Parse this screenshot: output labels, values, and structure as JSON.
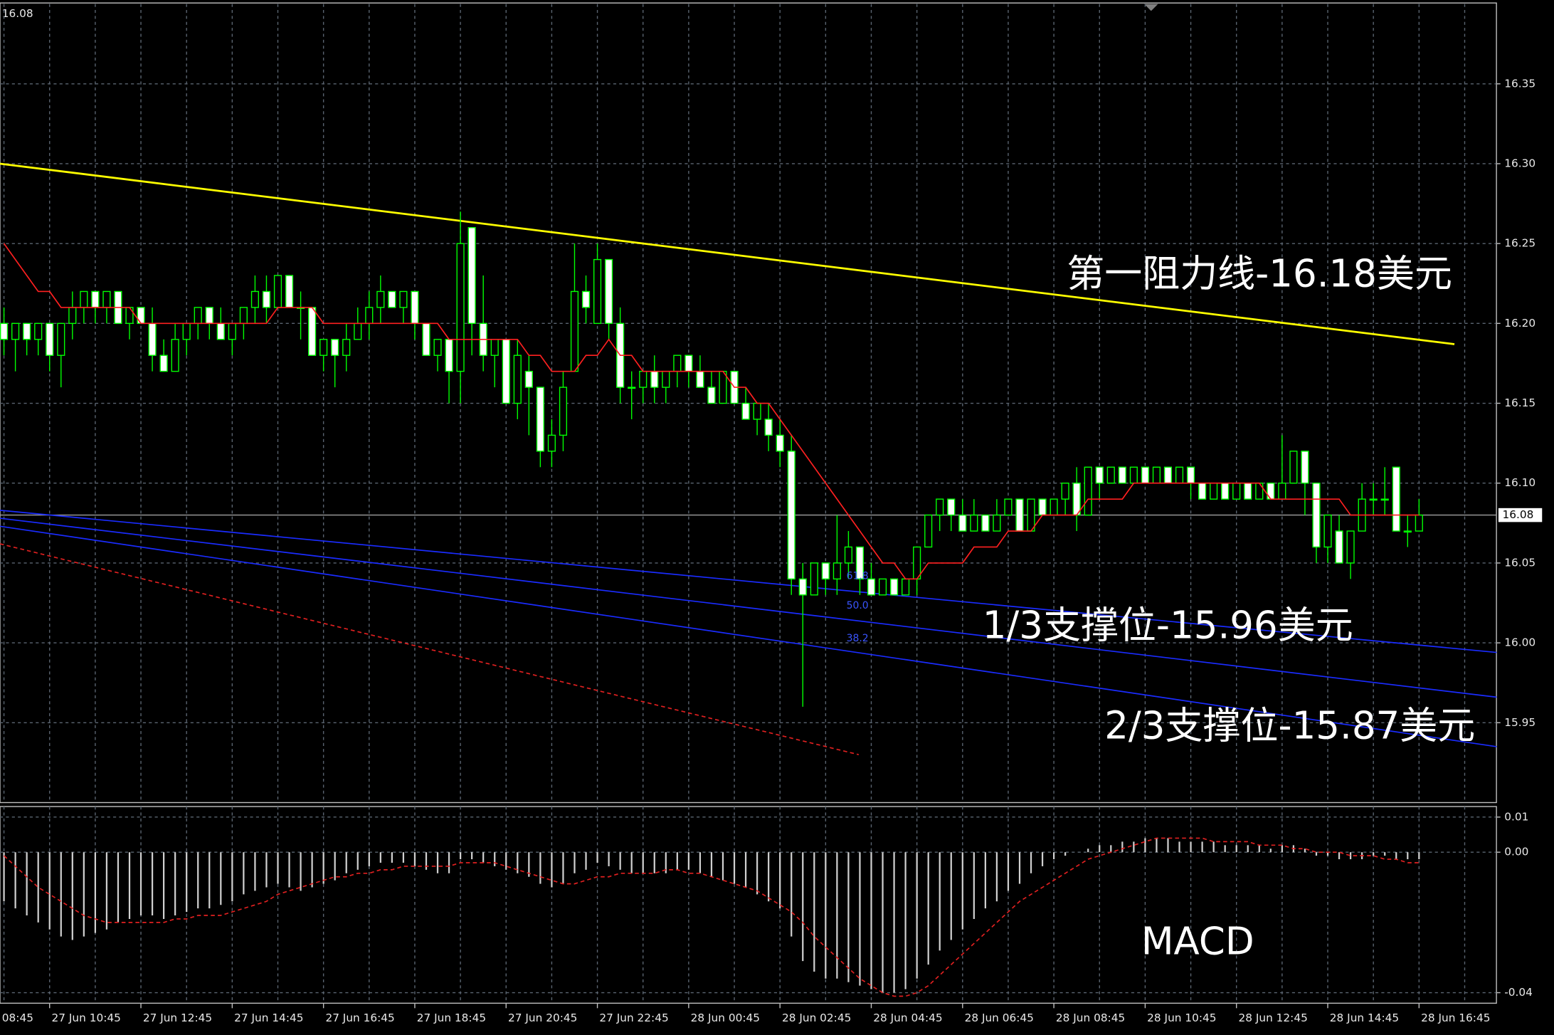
{
  "chart_data": {
    "type": "candlestick",
    "corner_label": "16.08",
    "categories": [
      "08:45",
      null,
      null,
      null,
      null,
      null,
      null,
      null,
      "27 Jun 10:45",
      null,
      null,
      null,
      null,
      null,
      null,
      null,
      "27 Jun 12:45",
      null,
      null,
      null,
      null,
      null,
      null,
      null,
      "27 Jun 14:45",
      null,
      null,
      null,
      null,
      null,
      null,
      null,
      "27 Jun 16:45",
      null,
      null,
      null,
      null,
      null,
      null,
      null,
      "27 Jun 18:45",
      null,
      null,
      null,
      null,
      null,
      null,
      null,
      "27 Jun 20:45",
      null,
      null,
      null,
      null,
      null,
      null,
      null,
      "27 Jun 22:45",
      null,
      null,
      null,
      null,
      null,
      null,
      null,
      "28 Jun 00:45",
      null,
      null,
      null,
      null,
      null,
      null,
      null,
      "28 Jun 02:45",
      null,
      null,
      null,
      null,
      null,
      null,
      null,
      "28 Jun 04:45",
      null,
      null,
      null,
      null,
      null,
      null,
      null,
      "28 Jun 06:45",
      null,
      null,
      null,
      null,
      null,
      null,
      null,
      "28 Jun 08:45",
      null,
      null,
      null,
      null,
      null,
      null,
      null,
      "28 Jun 10:45",
      null,
      null,
      null,
      null,
      null,
      null,
      null,
      "28 Jun 12:45",
      null,
      null,
      null,
      null,
      null,
      null,
      null,
      "28 Jun 14:45",
      null,
      null,
      null,
      null,
      null,
      null,
      null,
      "28 Jun 16:45",
      null,
      null,
      null,
      null,
      null,
      null
    ],
    "open": [
      null,
      null,
      null,
      null,
      16.2,
      16.19,
      16.2,
      16.19,
      16.2,
      16.18,
      16.2,
      16.21,
      16.22,
      16.21,
      16.22,
      16.2,
      16.21,
      16.2,
      16.18,
      16.17,
      16.19,
      16.2,
      16.21,
      16.2,
      16.19,
      16.2,
      16.21,
      16.22,
      16.21,
      16.23,
      16.21,
      16.21,
      16.18,
      16.19,
      16.18,
      16.19,
      16.2,
      16.21,
      16.22,
      16.21,
      16.22,
      16.2,
      16.18,
      16.19,
      16.17,
      16.26,
      16.2,
      16.18,
      16.19,
      16.15,
      16.17,
      16.16,
      16.12,
      16.13,
      16.17,
      16.22,
      16.2,
      16.24,
      16.2,
      16.16,
      16.16,
      16.17,
      16.16,
      16.17,
      16.18,
      16.17,
      16.16,
      16.15,
      16.17,
      16.15,
      16.14,
      16.14,
      16.13,
      16.12,
      16.04,
      16.03,
      16.05,
      16.04,
      16.05,
      16.06,
      16.04,
      16.03,
      16.04,
      16.03,
      16.04,
      16.06,
      16.08,
      16.09,
      16.08,
      16.07,
      16.08,
      16.07,
      16.08,
      16.09,
      16.07,
      16.09,
      16.08,
      16.09,
      16.1,
      16.08,
      16.11,
      16.1,
      16.11,
      16.1,
      16.11,
      16.1,
      16.11,
      16.1,
      16.11,
      16.1,
      16.09,
      16.1,
      16.09,
      16.1,
      16.09,
      16.1,
      16.09,
      16.1,
      16.12,
      16.1,
      16.06,
      16.07,
      16.05,
      16.07,
      16.09,
      16.09,
      16.11,
      16.07,
      16.07,
      null,
      null,
      null,
      null,
      null,
      null
    ],
    "high": [
      null,
      null,
      null,
      null,
      16.21,
      16.2,
      16.2,
      16.2,
      16.2,
      16.2,
      16.22,
      16.22,
      16.22,
      16.22,
      16.22,
      16.21,
      16.21,
      16.21,
      16.19,
      16.2,
      16.2,
      16.21,
      16.21,
      16.21,
      16.2,
      16.21,
      16.23,
      16.23,
      16.23,
      16.23,
      16.22,
      16.21,
      16.19,
      16.19,
      16.2,
      16.21,
      16.22,
      16.23,
      16.22,
      16.22,
      16.22,
      16.2,
      16.19,
      16.19,
      16.27,
      16.26,
      16.23,
      16.19,
      16.19,
      16.19,
      16.18,
      16.16,
      16.14,
      16.17,
      16.25,
      16.23,
      16.25,
      16.24,
      16.21,
      16.17,
      16.17,
      16.18,
      16.17,
      16.18,
      16.18,
      16.18,
      16.17,
      16.17,
      16.17,
      16.16,
      16.15,
      16.15,
      16.14,
      16.13,
      16.05,
      16.05,
      16.05,
      16.08,
      16.07,
      16.06,
      16.05,
      16.04,
      16.04,
      16.04,
      16.06,
      16.08,
      16.09,
      16.09,
      16.09,
      16.09,
      16.08,
      16.09,
      16.09,
      16.09,
      16.09,
      16.09,
      16.09,
      16.1,
      16.11,
      16.11,
      16.11,
      16.11,
      16.11,
      16.11,
      16.11,
      16.11,
      16.11,
      16.11,
      16.11,
      16.1,
      16.1,
      16.1,
      16.1,
      16.1,
      16.1,
      16.1,
      16.13,
      16.12,
      16.12,
      16.1,
      16.08,
      16.08,
      16.07,
      16.1,
      16.1,
      16.11,
      16.11,
      16.08,
      16.09,
      null,
      null,
      null,
      null,
      null,
      null
    ],
    "low": [
      null,
      null,
      null,
      null,
      16.18,
      16.17,
      16.18,
      16.18,
      16.17,
      16.16,
      16.19,
      16.2,
      16.2,
      16.2,
      16.2,
      16.19,
      16.2,
      16.17,
      16.17,
      16.17,
      16.18,
      16.19,
      16.19,
      16.19,
      16.18,
      16.19,
      16.2,
      16.2,
      16.21,
      16.21,
      16.19,
      16.18,
      16.17,
      16.16,
      16.17,
      16.19,
      16.19,
      16.2,
      16.21,
      16.2,
      16.19,
      16.18,
      16.17,
      16.15,
      16.15,
      16.18,
      16.17,
      16.16,
      16.15,
      16.14,
      16.13,
      16.11,
      16.11,
      16.12,
      16.17,
      16.2,
      16.2,
      16.19,
      16.15,
      16.14,
      16.15,
      16.15,
      16.15,
      16.16,
      16.16,
      16.16,
      16.15,
      16.15,
      16.15,
      16.14,
      16.13,
      16.12,
      16.11,
      16.03,
      15.96,
      16.03,
      16.03,
      16.03,
      16.04,
      16.03,
      16.03,
      16.03,
      16.03,
      16.03,
      16.03,
      16.06,
      16.07,
      16.07,
      16.07,
      16.07,
      16.07,
      16.07,
      16.08,
      16.07,
      16.07,
      16.08,
      16.08,
      16.08,
      16.07,
      16.08,
      16.09,
      16.1,
      16.1,
      16.1,
      16.1,
      16.1,
      16.1,
      16.1,
      16.09,
      16.09,
      16.09,
      16.09,
      16.09,
      16.09,
      16.09,
      16.09,
      16.09,
      16.1,
      16.08,
      16.05,
      16.05,
      16.05,
      16.04,
      16.07,
      16.08,
      16.08,
      16.07,
      16.06,
      16.07,
      null,
      null,
      null,
      null,
      null,
      null
    ],
    "close": [
      null,
      null,
      null,
      null,
      16.19,
      16.2,
      16.19,
      16.2,
      16.18,
      16.2,
      16.21,
      16.22,
      16.21,
      16.22,
      16.2,
      16.21,
      16.2,
      16.18,
      16.17,
      16.19,
      16.2,
      16.21,
      16.2,
      16.19,
      16.2,
      16.21,
      16.22,
      16.21,
      16.23,
      16.21,
      16.21,
      16.18,
      16.19,
      16.18,
      16.19,
      16.2,
      16.21,
      16.22,
      16.21,
      16.22,
      16.2,
      16.18,
      16.19,
      16.17,
      16.25,
      16.2,
      16.18,
      16.19,
      16.15,
      16.18,
      16.16,
      16.12,
      16.13,
      16.16,
      16.22,
      16.21,
      16.24,
      16.2,
      16.16,
      16.16,
      16.17,
      16.16,
      16.17,
      16.18,
      16.17,
      16.16,
      16.15,
      16.17,
      16.15,
      16.14,
      16.15,
      16.13,
      16.12,
      16.04,
      16.03,
      16.05,
      16.04,
      16.05,
      16.06,
      16.04,
      16.03,
      16.04,
      16.03,
      16.04,
      16.06,
      16.08,
      16.09,
      16.08,
      16.07,
      16.08,
      16.07,
      16.08,
      16.09,
      16.07,
      16.09,
      16.08,
      16.09,
      16.1,
      16.08,
      16.11,
      16.1,
      16.11,
      16.1,
      16.11,
      16.1,
      16.11,
      16.1,
      16.11,
      16.1,
      16.09,
      16.1,
      16.09,
      16.1,
      16.09,
      16.1,
      16.09,
      16.1,
      16.12,
      16.1,
      16.06,
      16.08,
      16.05,
      16.07,
      16.09,
      16.09,
      16.09,
      16.07,
      16.07,
      16.08,
      null,
      null,
      null,
      null,
      null,
      null
    ],
    "candle_colors": {
      "wick": "#00ff00",
      "up": "#000000",
      "down": "#ffffff"
    },
    "ma": {
      "color": "#ff2020",
      "values": [
        null,
        null,
        null,
        null,
        16.25,
        16.24,
        16.23,
        16.22,
        16.22,
        16.21,
        16.21,
        16.21,
        16.21,
        16.21,
        16.21,
        16.21,
        16.2,
        16.2,
        16.2,
        16.2,
        16.2,
        16.2,
        16.2,
        16.2,
        16.2,
        16.2,
        16.2,
        16.2,
        16.21,
        16.21,
        16.21,
        16.21,
        16.2,
        16.2,
        16.2,
        16.2,
        16.2,
        16.2,
        16.2,
        16.2,
        16.2,
        16.2,
        16.2,
        16.19,
        16.19,
        16.19,
        16.19,
        16.19,
        16.19,
        16.19,
        16.18,
        16.18,
        16.17,
        16.17,
        16.17,
        16.18,
        16.18,
        16.19,
        16.18,
        16.18,
        16.17,
        16.17,
        16.17,
        16.17,
        16.17,
        16.17,
        16.17,
        16.17,
        16.16,
        16.16,
        16.15,
        16.15,
        16.14,
        16.13,
        16.12,
        16.11,
        16.1,
        16.09,
        16.08,
        16.07,
        16.06,
        16.05,
        16.05,
        16.04,
        16.04,
        16.05,
        16.05,
        16.05,
        16.05,
        16.06,
        16.06,
        16.06,
        16.07,
        16.07,
        16.07,
        16.08,
        16.08,
        16.08,
        16.08,
        16.09,
        16.09,
        16.09,
        16.09,
        16.1,
        16.1,
        16.1,
        16.1,
        16.1,
        16.1,
        16.1,
        16.1,
        16.1,
        16.1,
        16.1,
        16.1,
        16.09,
        16.09,
        16.09,
        16.09,
        16.09,
        16.09,
        16.09,
        16.08,
        16.08,
        16.08,
        16.08,
        16.08,
        16.08,
        16.08,
        null,
        null,
        null,
        null,
        null,
        null
      ]
    },
    "ylim": [
      15.9,
      16.4
    ],
    "yticks": [
      {
        "value": 15.95,
        "label": "15.95"
      },
      {
        "value": 16.0,
        "label": "16.00"
      },
      16.05,
      {
        "value": 16.1,
        "label": "16.10"
      },
      16.15,
      {
        "value": 16.2,
        "label": "16.20"
      },
      16.25,
      {
        "value": 16.3,
        "label": "16.30"
      },
      16.35
    ],
    "grid": true,
    "last_price": 16.08,
    "trendlines": [
      {
        "color": "#ffff00",
        "x": [
          3.65,
          131.1
        ],
        "y": [
          16.3,
          16.187
        ]
      },
      {
        "color": "#1a2cff",
        "x": [
          3.65,
          134.8
        ],
        "y": [
          16.083,
          15.994
        ]
      },
      {
        "color": "#1a2cff",
        "x": [
          3.65,
          134.8
        ],
        "y": [
          16.078,
          15.966
        ]
      },
      {
        "color": "#1a2cff",
        "x": [
          3.65,
          134.8
        ],
        "y": [
          16.073,
          15.935
        ]
      },
      {
        "color": "#e02020",
        "dashed": true,
        "x": [
          3.65,
          78.9
        ],
        "y": [
          16.062,
          15.93
        ]
      }
    ],
    "fib_labels": [
      "61.8",
      "50.0",
      "38.2"
    ],
    "annotations": [
      "第一阻力线-16.18美元",
      "1/3支撑位-15.96美元",
      "2/3支撑位-15.87美元"
    ],
    "macd": {
      "type": "bar",
      "title": "MACD",
      "color": "#d0d0d0",
      "signal_color": "#e02020",
      "values": [
        null,
        null,
        null,
        null,
        -0.014,
        -0.016,
        -0.018,
        -0.02,
        -0.022,
        -0.024,
        -0.025,
        -0.024,
        -0.023,
        -0.022,
        -0.02,
        -0.019,
        -0.018,
        -0.018,
        -0.019,
        -0.018,
        -0.017,
        -0.016,
        -0.016,
        -0.015,
        -0.014,
        -0.012,
        -0.011,
        -0.01,
        -0.009,
        -0.01,
        -0.011,
        -0.01,
        -0.009,
        -0.008,
        -0.006,
        -0.005,
        -0.004,
        -0.003,
        -0.003,
        -0.003,
        -0.004,
        -0.005,
        -0.006,
        -0.006,
        -0.002,
        -0.002,
        -0.003,
        -0.004,
        -0.005,
        -0.006,
        -0.007,
        -0.009,
        -0.01,
        -0.009,
        -0.006,
        -0.005,
        -0.003,
        -0.004,
        -0.005,
        -0.006,
        -0.006,
        -0.006,
        -0.006,
        -0.005,
        -0.005,
        -0.006,
        -0.007,
        -0.008,
        -0.009,
        -0.01,
        -0.012,
        -0.014,
        -0.016,
        -0.024,
        -0.031,
        -0.034,
        -0.036,
        -0.036,
        -0.037,
        -0.038,
        -0.039,
        -0.04,
        -0.04,
        -0.039,
        -0.036,
        -0.032,
        -0.028,
        -0.025,
        -0.022,
        -0.019,
        -0.016,
        -0.014,
        -0.011,
        -0.009,
        -0.006,
        -0.004,
        -0.002,
        -0.001,
        0.0,
        0.001,
        0.002,
        0.002,
        0.003,
        0.003,
        0.004,
        0.004,
        0.004,
        0.003,
        0.003,
        0.003,
        0.003,
        0.002,
        0.002,
        0.002,
        0.002,
        0.001,
        0.002,
        0.002,
        0.001,
        -0.001,
        -0.001,
        -0.002,
        -0.002,
        -0.002,
        -0.001,
        -0.001,
        -0.002,
        -0.002,
        -0.002,
        null,
        null,
        null,
        null,
        null,
        null
      ],
      "signal": [
        null,
        null,
        null,
        null,
        -0.001,
        -0.004,
        -0.007,
        -0.01,
        -0.012,
        -0.014,
        -0.016,
        -0.018,
        -0.019,
        -0.02,
        -0.02,
        -0.02,
        -0.02,
        -0.02,
        -0.02,
        -0.019,
        -0.019,
        -0.018,
        -0.018,
        -0.018,
        -0.017,
        -0.016,
        -0.015,
        -0.014,
        -0.012,
        -0.011,
        -0.01,
        -0.009,
        -0.008,
        -0.007,
        -0.007,
        -0.006,
        -0.006,
        -0.005,
        -0.005,
        -0.004,
        -0.004,
        -0.004,
        -0.004,
        -0.004,
        -0.003,
        -0.003,
        -0.003,
        -0.003,
        -0.004,
        -0.005,
        -0.006,
        -0.007,
        -0.008,
        -0.009,
        -0.009,
        -0.008,
        -0.007,
        -0.007,
        -0.006,
        -0.006,
        -0.006,
        -0.006,
        -0.005,
        -0.005,
        -0.006,
        -0.006,
        -0.007,
        -0.008,
        -0.009,
        -0.01,
        -0.011,
        -0.013,
        -0.015,
        -0.017,
        -0.02,
        -0.024,
        -0.027,
        -0.03,
        -0.033,
        -0.036,
        -0.038,
        -0.04,
        -0.041,
        -0.041,
        -0.04,
        -0.038,
        -0.035,
        -0.032,
        -0.029,
        -0.026,
        -0.023,
        -0.02,
        -0.017,
        -0.014,
        -0.012,
        -0.01,
        -0.008,
        -0.006,
        -0.004,
        -0.002,
        -0.001,
        0.0,
        0.001,
        0.002,
        0.003,
        0.004,
        0.004,
        0.004,
        0.004,
        0.004,
        0.003,
        0.003,
        0.003,
        0.003,
        0.002,
        0.002,
        0.002,
        0.001,
        0.001,
        0.0,
        0.0,
        0.0,
        -0.001,
        -0.001,
        -0.001,
        -0.002,
        -0.002,
        -0.003,
        -0.003,
        null,
        null,
        null,
        null,
        null,
        null
      ],
      "ylim": [
        -0.043,
        0.013
      ],
      "yticks": [
        0.01,
        {
          "value": 0,
          "label": "0.00"
        },
        -0.04
      ]
    }
  }
}
